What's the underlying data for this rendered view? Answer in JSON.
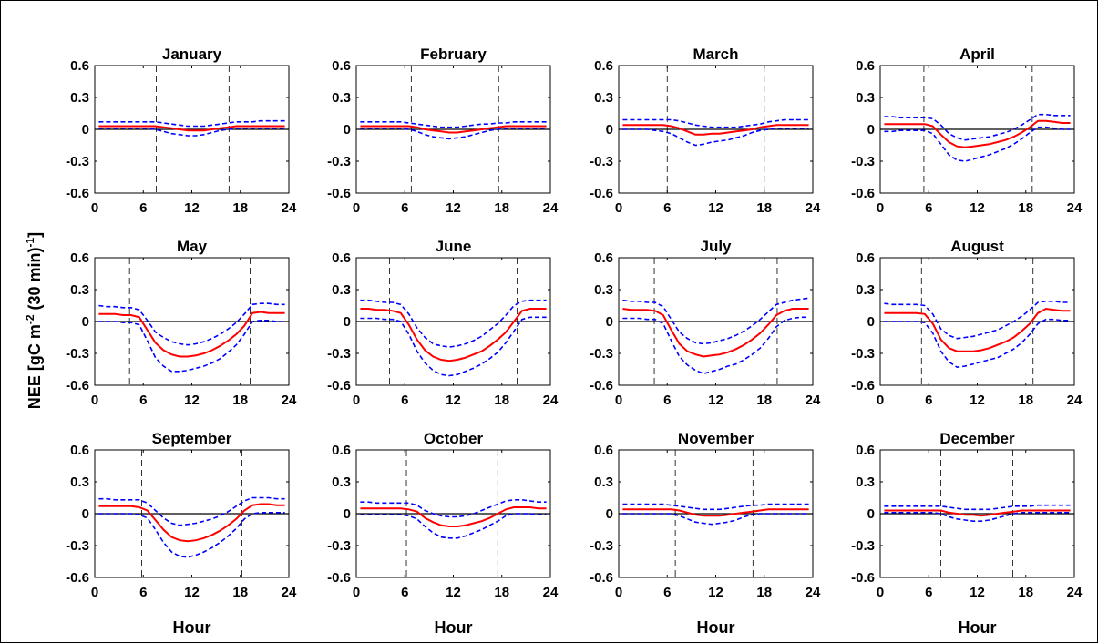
{
  "figure": {
    "ylabel_main": "NEE [gC m",
    "ylabel_sup1": "-2",
    "ylabel_mid": " (30 min)",
    "ylabel_sup2": "-1",
    "ylabel_end": "]",
    "xlabel": "Hour"
  },
  "colors": {
    "mean": "#ff0000",
    "bounds": "#0000ff",
    "zero": "#000000",
    "daylight": "#000000"
  },
  "chart_data": {
    "type": "line",
    "xlim": [
      0,
      24
    ],
    "ylim": [
      -0.6,
      0.6
    ],
    "xticks": [
      0,
      6,
      12,
      18,
      24
    ],
    "yticks": [
      0.6,
      0.3,
      0,
      -0.3,
      -0.6
    ],
    "ytick_labels": [
      "0.6",
      "0.3",
      "0",
      "-0.3",
      "-0.6"
    ],
    "hours": [
      0.5,
      1.5,
      2.5,
      3.5,
      4.5,
      5.5,
      6.5,
      7.5,
      8.5,
      9.5,
      10.5,
      11.5,
      12.5,
      13.5,
      14.5,
      15.5,
      16.5,
      17.5,
      18.5,
      19.5,
      20.5,
      21.5,
      22.5,
      23.5
    ],
    "grid": false,
    "panels": [
      {
        "title": "January",
        "sunrise": 7.6,
        "sunset": 16.6,
        "mean": [
          0.03,
          0.03,
          0.03,
          0.03,
          0.03,
          0.03,
          0.03,
          0.03,
          0.02,
          0.01,
          0.0,
          -0.01,
          -0.01,
          -0.01,
          0.0,
          0.01,
          0.02,
          0.03,
          0.03,
          0.03,
          0.03,
          0.03,
          0.03,
          0.03
        ],
        "upper": [
          0.07,
          0.07,
          0.07,
          0.07,
          0.07,
          0.07,
          0.07,
          0.07,
          0.06,
          0.05,
          0.04,
          0.03,
          0.03,
          0.03,
          0.04,
          0.05,
          0.06,
          0.07,
          0.07,
          0.07,
          0.08,
          0.08,
          0.08,
          0.08
        ],
        "lower": [
          0.01,
          0.01,
          0.01,
          0.01,
          0.01,
          0.01,
          0.01,
          0.0,
          -0.02,
          -0.04,
          -0.05,
          -0.06,
          -0.06,
          -0.05,
          -0.03,
          -0.01,
          0.0,
          0.01,
          0.01,
          0.01,
          0.01,
          0.01,
          0.01,
          0.01
        ]
      },
      {
        "title": "February",
        "sunrise": 6.8,
        "sunset": 17.6,
        "mean": [
          0.03,
          0.03,
          0.03,
          0.03,
          0.03,
          0.03,
          0.03,
          0.02,
          0.0,
          -0.01,
          -0.02,
          -0.03,
          -0.03,
          -0.02,
          -0.01,
          0.0,
          0.01,
          0.02,
          0.03,
          0.03,
          0.03,
          0.03,
          0.03,
          0.03
        ],
        "upper": [
          0.07,
          0.07,
          0.07,
          0.07,
          0.07,
          0.07,
          0.06,
          0.05,
          0.04,
          0.03,
          0.02,
          0.02,
          0.02,
          0.03,
          0.04,
          0.05,
          0.05,
          0.06,
          0.06,
          0.07,
          0.07,
          0.07,
          0.07,
          0.07
        ],
        "lower": [
          0.01,
          0.01,
          0.01,
          0.01,
          0.01,
          0.01,
          0.0,
          -0.02,
          -0.05,
          -0.07,
          -0.08,
          -0.09,
          -0.08,
          -0.07,
          -0.05,
          -0.03,
          -0.01,
          0.0,
          0.01,
          0.01,
          0.01,
          0.01,
          0.01,
          0.01
        ]
      },
      {
        "title": "March",
        "sunrise": 6.0,
        "sunset": 18.0,
        "mean": [
          0.04,
          0.04,
          0.04,
          0.04,
          0.04,
          0.04,
          0.03,
          0.01,
          -0.02,
          -0.05,
          -0.05,
          -0.04,
          -0.04,
          -0.03,
          -0.02,
          -0.01,
          0.0,
          0.02,
          0.03,
          0.04,
          0.04,
          0.04,
          0.04,
          0.04
        ],
        "upper": [
          0.09,
          0.09,
          0.09,
          0.09,
          0.09,
          0.09,
          0.09,
          0.08,
          0.06,
          0.04,
          0.03,
          0.02,
          0.02,
          0.02,
          0.02,
          0.03,
          0.04,
          0.05,
          0.07,
          0.08,
          0.09,
          0.09,
          0.09,
          0.09
        ],
        "lower": [
          0.0,
          0.0,
          0.0,
          0.0,
          -0.01,
          -0.02,
          -0.04,
          -0.08,
          -0.12,
          -0.15,
          -0.14,
          -0.12,
          -0.11,
          -0.1,
          -0.08,
          -0.06,
          -0.03,
          -0.01,
          0.0,
          0.01,
          0.01,
          0.01,
          0.01,
          0.01
        ]
      },
      {
        "title": "April",
        "sunrise": 5.4,
        "sunset": 18.8,
        "mean": [
          0.05,
          0.05,
          0.05,
          0.05,
          0.05,
          0.05,
          0.03,
          -0.05,
          -0.12,
          -0.16,
          -0.17,
          -0.16,
          -0.15,
          -0.14,
          -0.12,
          -0.1,
          -0.07,
          -0.03,
          0.02,
          0.08,
          0.08,
          0.07,
          0.06,
          0.06
        ],
        "upper": [
          0.12,
          0.12,
          0.11,
          0.11,
          0.11,
          0.11,
          0.1,
          0.04,
          -0.04,
          -0.08,
          -0.1,
          -0.09,
          -0.08,
          -0.07,
          -0.05,
          -0.03,
          0.0,
          0.04,
          0.09,
          0.14,
          0.14,
          0.13,
          0.13,
          0.13
        ],
        "lower": [
          -0.02,
          -0.02,
          -0.01,
          -0.01,
          -0.01,
          -0.01,
          -0.04,
          -0.14,
          -0.24,
          -0.29,
          -0.3,
          -0.28,
          -0.26,
          -0.24,
          -0.21,
          -0.18,
          -0.14,
          -0.09,
          -0.03,
          0.02,
          0.02,
          0.01,
          0.0,
          0.0
        ]
      },
      {
        "title": "May",
        "sunrise": 4.3,
        "sunset": 19.2,
        "mean": [
          0.07,
          0.07,
          0.07,
          0.06,
          0.06,
          0.04,
          -0.08,
          -0.2,
          -0.27,
          -0.31,
          -0.33,
          -0.33,
          -0.32,
          -0.3,
          -0.27,
          -0.23,
          -0.18,
          -0.12,
          -0.04,
          0.08,
          0.09,
          0.08,
          0.08,
          0.08
        ],
        "upper": [
          0.15,
          0.14,
          0.14,
          0.13,
          0.13,
          0.11,
          0.01,
          -0.1,
          -0.15,
          -0.19,
          -0.21,
          -0.22,
          -0.21,
          -0.19,
          -0.16,
          -0.12,
          -0.07,
          -0.01,
          0.07,
          0.16,
          0.17,
          0.17,
          0.16,
          0.16
        ],
        "lower": [
          0.0,
          0.0,
          0.0,
          -0.01,
          -0.01,
          -0.03,
          -0.18,
          -0.34,
          -0.42,
          -0.47,
          -0.47,
          -0.46,
          -0.44,
          -0.42,
          -0.39,
          -0.35,
          -0.29,
          -0.22,
          -0.12,
          0.0,
          0.01,
          0.01,
          0.0,
          0.0
        ]
      },
      {
        "title": "June",
        "sunrise": 4.1,
        "sunset": 19.9,
        "mean": [
          0.12,
          0.12,
          0.11,
          0.11,
          0.1,
          0.08,
          -0.03,
          -0.17,
          -0.27,
          -0.33,
          -0.36,
          -0.37,
          -0.36,
          -0.34,
          -0.31,
          -0.28,
          -0.23,
          -0.17,
          -0.1,
          0.0,
          0.1,
          0.12,
          0.12,
          0.12
        ],
        "upper": [
          0.2,
          0.2,
          0.19,
          0.18,
          0.18,
          0.16,
          0.07,
          -0.06,
          -0.15,
          -0.21,
          -0.23,
          -0.24,
          -0.23,
          -0.21,
          -0.18,
          -0.14,
          -0.08,
          -0.02,
          0.06,
          0.15,
          0.19,
          0.2,
          0.2,
          0.2
        ],
        "lower": [
          0.03,
          0.03,
          0.03,
          0.02,
          0.02,
          0.0,
          -0.12,
          -0.28,
          -0.39,
          -0.46,
          -0.5,
          -0.51,
          -0.5,
          -0.47,
          -0.44,
          -0.4,
          -0.35,
          -0.29,
          -0.2,
          -0.09,
          0.02,
          0.04,
          0.04,
          0.04
        ]
      },
      {
        "title": "July",
        "sunrise": 4.4,
        "sunset": 19.6,
        "mean": [
          0.12,
          0.11,
          0.11,
          0.11,
          0.1,
          0.06,
          -0.08,
          -0.21,
          -0.28,
          -0.31,
          -0.33,
          -0.32,
          -0.31,
          -0.29,
          -0.26,
          -0.22,
          -0.17,
          -0.11,
          -0.03,
          0.06,
          0.1,
          0.12,
          0.12,
          0.12
        ],
        "upper": [
          0.2,
          0.19,
          0.19,
          0.18,
          0.18,
          0.14,
          0.02,
          -0.1,
          -0.16,
          -0.2,
          -0.21,
          -0.2,
          -0.18,
          -0.16,
          -0.13,
          -0.09,
          -0.04,
          0.02,
          0.09,
          0.16,
          0.18,
          0.2,
          0.21,
          0.22
        ],
        "lower": [
          0.03,
          0.03,
          0.03,
          0.02,
          0.02,
          -0.02,
          -0.18,
          -0.33,
          -0.41,
          -0.46,
          -0.49,
          -0.47,
          -0.45,
          -0.42,
          -0.4,
          -0.36,
          -0.31,
          -0.25,
          -0.16,
          -0.05,
          0.01,
          0.03,
          0.04,
          0.04
        ]
      },
      {
        "title": "August",
        "sunrise": 5.1,
        "sunset": 18.9,
        "mean": [
          0.08,
          0.08,
          0.08,
          0.08,
          0.08,
          0.07,
          -0.02,
          -0.17,
          -0.25,
          -0.28,
          -0.28,
          -0.28,
          -0.27,
          -0.25,
          -0.22,
          -0.19,
          -0.15,
          -0.09,
          -0.02,
          0.08,
          0.12,
          0.11,
          0.1,
          0.1
        ],
        "upper": [
          0.17,
          0.16,
          0.16,
          0.16,
          0.16,
          0.15,
          0.07,
          -0.07,
          -0.13,
          -0.16,
          -0.15,
          -0.14,
          -0.12,
          -0.1,
          -0.08,
          -0.04,
          0.0,
          0.05,
          0.11,
          0.18,
          0.19,
          0.19,
          0.18,
          0.18
        ],
        "lower": [
          0.0,
          0.0,
          0.0,
          0.0,
          0.0,
          -0.01,
          -0.11,
          -0.28,
          -0.38,
          -0.43,
          -0.42,
          -0.4,
          -0.38,
          -0.36,
          -0.34,
          -0.3,
          -0.26,
          -0.2,
          -0.12,
          -0.02,
          0.02,
          0.02,
          0.01,
          0.01
        ]
      },
      {
        "title": "September",
        "sunrise": 5.8,
        "sunset": 18.2,
        "mean": [
          0.07,
          0.07,
          0.07,
          0.07,
          0.07,
          0.06,
          0.03,
          -0.06,
          -0.15,
          -0.22,
          -0.25,
          -0.26,
          -0.25,
          -0.23,
          -0.2,
          -0.16,
          -0.11,
          -0.05,
          0.03,
          0.08,
          0.09,
          0.09,
          0.08,
          0.08
        ],
        "upper": [
          0.14,
          0.14,
          0.13,
          0.13,
          0.13,
          0.13,
          0.1,
          0.03,
          -0.04,
          -0.09,
          -0.11,
          -0.1,
          -0.09,
          -0.07,
          -0.05,
          -0.02,
          0.02,
          0.07,
          0.12,
          0.15,
          0.15,
          0.15,
          0.14,
          0.14
        ],
        "lower": [
          0.0,
          0.0,
          0.0,
          0.0,
          0.0,
          -0.01,
          -0.04,
          -0.15,
          -0.27,
          -0.36,
          -0.4,
          -0.41,
          -0.39,
          -0.36,
          -0.32,
          -0.27,
          -0.21,
          -0.14,
          -0.05,
          0.0,
          0.01,
          0.01,
          0.01,
          0.01
        ]
      },
      {
        "title": "October",
        "sunrise": 6.2,
        "sunset": 17.5,
        "mean": [
          0.05,
          0.05,
          0.05,
          0.05,
          0.05,
          0.05,
          0.04,
          0.02,
          -0.04,
          -0.08,
          -0.11,
          -0.12,
          -0.12,
          -0.11,
          -0.09,
          -0.07,
          -0.04,
          0.0,
          0.04,
          0.06,
          0.06,
          0.06,
          0.05,
          0.05
        ],
        "upper": [
          0.11,
          0.11,
          0.1,
          0.1,
          0.1,
          0.1,
          0.1,
          0.08,
          0.03,
          0.0,
          -0.02,
          -0.03,
          -0.03,
          -0.02,
          0.0,
          0.03,
          0.06,
          0.09,
          0.12,
          0.13,
          0.13,
          0.12,
          0.11,
          0.11
        ],
        "lower": [
          -0.01,
          -0.01,
          -0.01,
          -0.01,
          -0.01,
          -0.01,
          -0.02,
          -0.05,
          -0.12,
          -0.18,
          -0.22,
          -0.23,
          -0.23,
          -0.21,
          -0.18,
          -0.15,
          -0.11,
          -0.07,
          -0.02,
          0.0,
          0.0,
          0.0,
          -0.01,
          -0.01
        ]
      },
      {
        "title": "November",
        "sunrise": 7.0,
        "sunset": 16.6,
        "mean": [
          0.04,
          0.04,
          0.04,
          0.04,
          0.04,
          0.04,
          0.04,
          0.03,
          0.01,
          -0.01,
          -0.02,
          -0.02,
          -0.02,
          -0.01,
          0.0,
          0.01,
          0.02,
          0.03,
          0.04,
          0.04,
          0.04,
          0.04,
          0.04,
          0.04
        ],
        "upper": [
          0.09,
          0.09,
          0.09,
          0.09,
          0.09,
          0.09,
          0.08,
          0.07,
          0.06,
          0.05,
          0.04,
          0.04,
          0.04,
          0.05,
          0.06,
          0.07,
          0.08,
          0.08,
          0.09,
          0.09,
          0.09,
          0.09,
          0.09,
          0.09
        ],
        "lower": [
          0.0,
          0.0,
          0.0,
          0.0,
          0.0,
          0.0,
          0.0,
          -0.02,
          -0.05,
          -0.08,
          -0.09,
          -0.1,
          -0.09,
          -0.08,
          -0.06,
          -0.03,
          -0.01,
          0.0,
          0.0,
          0.0,
          0.0,
          0.0,
          0.0,
          0.0
        ]
      },
      {
        "title": "December",
        "sunrise": 7.5,
        "sunset": 16.4,
        "mean": [
          0.03,
          0.03,
          0.03,
          0.03,
          0.03,
          0.03,
          0.03,
          0.03,
          0.01,
          0.0,
          -0.01,
          -0.01,
          -0.02,
          -0.01,
          0.0,
          0.01,
          0.02,
          0.03,
          0.03,
          0.03,
          0.03,
          0.03,
          0.03,
          0.03
        ],
        "upper": [
          0.07,
          0.07,
          0.07,
          0.07,
          0.07,
          0.07,
          0.07,
          0.07,
          0.06,
          0.05,
          0.04,
          0.04,
          0.04,
          0.04,
          0.05,
          0.06,
          0.07,
          0.07,
          0.07,
          0.08,
          0.08,
          0.08,
          0.08,
          0.08
        ],
        "lower": [
          0.01,
          0.01,
          0.01,
          0.01,
          0.01,
          0.01,
          0.01,
          0.0,
          -0.03,
          -0.05,
          -0.06,
          -0.07,
          -0.07,
          -0.06,
          -0.04,
          -0.02,
          0.0,
          0.01,
          0.01,
          0.01,
          0.01,
          0.01,
          0.01,
          0.01
        ]
      }
    ]
  }
}
